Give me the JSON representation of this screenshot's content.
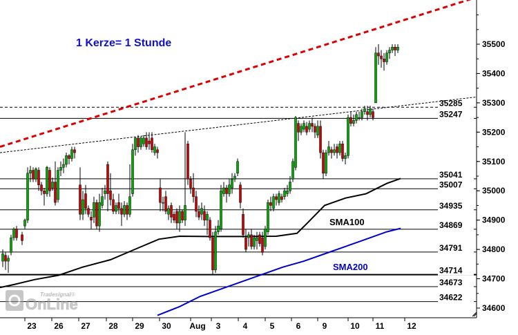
{
  "chart_data": {
    "type": "candlestick",
    "annotation": "1 Kerze= 1 Stunde",
    "brand": {
      "logo_text": "OnLine",
      "tag": "Tradesignal",
      "registered": "®"
    },
    "x_axis_labels": [
      "23",
      "26",
      "27",
      "28",
      "29",
      "30",
      "Aug",
      "3",
      "4",
      "5",
      "6",
      "9",
      "10",
      "11",
      "12"
    ],
    "y_axis": {
      "ticks": [
        34600,
        34700,
        34800,
        34900,
        35000,
        35100,
        35200,
        35300,
        35400,
        35500
      ],
      "ylim": [
        34570,
        35680
      ]
    },
    "levels": [
      35285,
      35247,
      35041,
      35007,
      34935,
      34869,
      34791,
      34714,
      34673,
      34622
    ],
    "sma100": {
      "label": "SMA100",
      "color": "#000000",
      "points": [
        [
          0,
          34670
        ],
        [
          20,
          34680
        ],
        [
          50,
          34697
        ],
        [
          85,
          34712
        ],
        [
          120,
          34740
        ],
        [
          160,
          34765
        ],
        [
          200,
          34805
        ],
        [
          230,
          34835
        ],
        [
          260,
          34845
        ],
        [
          300,
          34844
        ],
        [
          350,
          34844
        ],
        [
          400,
          34845
        ],
        [
          430,
          34855
        ],
        [
          445,
          34890
        ],
        [
          470,
          34950
        ],
        [
          500,
          34975
        ],
        [
          530,
          34990
        ],
        [
          560,
          35025
        ],
        [
          580,
          35042
        ]
      ]
    },
    "sma200": {
      "label": "SMA200",
      "color": "#0000cc",
      "points": [
        [
          228,
          34575
        ],
        [
          260,
          34605
        ],
        [
          290,
          34640
        ],
        [
          320,
          34665
        ],
        [
          350,
          34690
        ],
        [
          380,
          34715
        ],
        [
          410,
          34740
        ],
        [
          440,
          34760
        ],
        [
          470,
          34785
        ],
        [
          500,
          34810
        ],
        [
          530,
          34835
        ],
        [
          560,
          34860
        ],
        [
          580,
          34872
        ]
      ]
    },
    "trend_channel": {
      "color": "#dd0000",
      "from": [
        0,
        35150
      ],
      "to": [
        690,
        35660
      ]
    },
    "upper_thin_trend": {
      "color": "#000000",
      "from": [
        0,
        35130
      ],
      "to": [
        690,
        35320
      ]
    },
    "candles_note": "hourly candles, values in index points",
    "candles": [
      [
        4,
        34760,
        34785,
        34740,
        34800
      ],
      [
        8,
        34780,
        34760,
        34730,
        34790
      ],
      [
        12,
        34760,
        34770,
        34720,
        34780
      ],
      [
        16,
        34790,
        34840,
        34780,
        34850
      ],
      [
        20,
        34840,
        34870,
        34830,
        34875
      ],
      [
        24,
        34870,
        34840,
        34830,
        34880
      ],
      [
        32,
        34850,
        34830,
        34815,
        34860
      ],
      [
        36,
        34880,
        34900,
        34870,
        34905
      ],
      [
        40,
        34900,
        35060,
        34890,
        35080
      ],
      [
        44,
        35060,
        35070,
        35030,
        35085
      ],
      [
        48,
        35070,
        35040,
        35030,
        35080
      ],
      [
        52,
        35040,
        35075,
        35030,
        35080
      ],
      [
        56,
        35070,
        35020,
        35000,
        35080
      ],
      [
        60,
        35020,
        35000,
        34985,
        35030
      ],
      [
        64,
        35000,
        34990,
        34950,
        35010
      ],
      [
        68,
        34990,
        35080,
        34980,
        35085
      ],
      [
        72,
        35070,
        35000,
        34980,
        35080
      ],
      [
        76,
        35010,
        35030,
        35000,
        35045
      ],
      [
        80,
        35030,
        34960,
        34950,
        35100
      ],
      [
        84,
        34970,
        35070,
        34960,
        35080
      ],
      [
        88,
        35070,
        35080,
        35050,
        35100
      ],
      [
        92,
        35080,
        35090,
        35060,
        35110
      ],
      [
        96,
        35090,
        35120,
        35080,
        35130
      ],
      [
        100,
        35120,
        35110,
        35090,
        35125
      ],
      [
        104,
        35110,
        35140,
        35100,
        35150
      ],
      [
        108,
        35140,
        35130,
        35110,
        35150
      ],
      [
        116,
        35020,
        34920,
        34900,
        35080
      ],
      [
        120,
        34920,
        34970,
        34900,
        35000
      ],
      [
        124,
        34990,
        34940,
        34920,
        35020
      ],
      [
        128,
        34940,
        34920,
        34910,
        34950
      ],
      [
        132,
        34910,
        34900,
        34870,
        34930
      ],
      [
        136,
        34910,
        34960,
        34890,
        34980
      ],
      [
        140,
        34960,
        34880,
        34870,
        34970
      ],
      [
        144,
        34880,
        34960,
        34860,
        34990
      ],
      [
        148,
        34950,
        34980,
        34940,
        35010
      ],
      [
        152,
        34990,
        35000,
        34970,
        35020
      ],
      [
        156,
        35090,
        34990,
        34930,
        35100
      ],
      [
        160,
        35000,
        34970,
        34950,
        35060
      ],
      [
        164,
        34970,
        34930,
        34920,
        34990
      ],
      [
        168,
        34930,
        34950,
        34920,
        34960
      ],
      [
        172,
        34960,
        34940,
        34920,
        34990
      ],
      [
        176,
        34940,
        34920,
        34880,
        34960
      ],
      [
        180,
        34920,
        34950,
        34910,
        34965
      ],
      [
        184,
        34950,
        34920,
        34900,
        34960
      ],
      [
        188,
        34920,
        34980,
        34910,
        35090
      ],
      [
        192,
        34990,
        35140,
        34980,
        35160
      ],
      [
        196,
        35140,
        35180,
        35120,
        35185
      ],
      [
        200,
        35180,
        35150,
        35130,
        35190
      ],
      [
        204,
        35150,
        35180,
        35140,
        35185
      ],
      [
        208,
        35160,
        35180,
        35150,
        35190
      ],
      [
        212,
        35180,
        35150,
        35140,
        35200
      ],
      [
        216,
        35170,
        35160,
        35140,
        35200
      ],
      [
        220,
        35180,
        35140,
        35130,
        35200
      ],
      [
        224,
        35130,
        35150,
        35120,
        35160
      ],
      [
        228,
        35140,
        35130,
        35110,
        35150
      ],
      [
        232,
        35010,
        34960,
        34930,
        35040
      ],
      [
        236,
        34960,
        34960,
        34930,
        34980
      ],
      [
        240,
        34980,
        34930,
        34920,
        35000
      ],
      [
        244,
        34920,
        34940,
        34900,
        34950
      ],
      [
        248,
        34950,
        34910,
        34890,
        34960
      ],
      [
        252,
        34920,
        34900,
        34890,
        34930
      ],
      [
        256,
        34930,
        34890,
        34870,
        34940
      ],
      [
        260,
        34890,
        34930,
        34860,
        34950
      ],
      [
        264,
        34930,
        34900,
        34890,
        34935
      ],
      [
        268,
        34900,
        34950,
        34880,
        35200
      ],
      [
        272,
        35160,
        35040,
        35020,
        35170
      ],
      [
        276,
        35040,
        35010,
        34990,
        35050
      ],
      [
        280,
        35010,
        34980,
        34960,
        35060
      ],
      [
        284,
        34980,
        34930,
        34910,
        35000
      ],
      [
        288,
        34930,
        34910,
        34900,
        34950
      ],
      [
        292,
        34920,
        34940,
        34900,
        34960
      ],
      [
        296,
        34930,
        34900,
        34880,
        34950
      ],
      [
        300,
        34900,
        34920,
        34850,
        34930
      ],
      [
        304,
        34900,
        34840,
        34830,
        34910
      ],
      [
        308,
        34840,
        34730,
        34715,
        34860
      ],
      [
        312,
        34730,
        34860,
        34720,
        34880
      ],
      [
        316,
        34860,
        34880,
        34850,
        34900
      ],
      [
        320,
        34870,
        35000,
        34860,
        35020
      ],
      [
        324,
        34990,
        35010,
        34980,
        35030
      ],
      [
        328,
        35010,
        34990,
        34960,
        35020
      ],
      [
        332,
        34990,
        35020,
        34980,
        35040
      ],
      [
        336,
        35010,
        35040,
        34990,
        35060
      ],
      [
        340,
        35040,
        35050,
        35030,
        35060
      ],
      [
        344,
        35060,
        35100,
        35050,
        35110
      ],
      [
        348,
        35020,
        34960,
        34940,
        35030
      ],
      [
        352,
        34920,
        34850,
        34840,
        34940
      ],
      [
        356,
        34840,
        34800,
        34790,
        34870
      ],
      [
        360,
        34840,
        34850,
        34810,
        34860
      ],
      [
        364,
        34850,
        34810,
        34800,
        34870
      ],
      [
        368,
        34810,
        34840,
        34800,
        34850
      ],
      [
        372,
        34830,
        34840,
        34800,
        34860
      ],
      [
        376,
        34850,
        34820,
        34810,
        34860
      ],
      [
        380,
        34840,
        34790,
        34780,
        34860
      ],
      [
        384,
        34810,
        34870,
        34800,
        34880
      ],
      [
        388,
        34860,
        34960,
        34850,
        34970
      ],
      [
        392,
        34960,
        34950,
        34930,
        34980
      ],
      [
        396,
        34940,
        34980,
        34930,
        34990
      ],
      [
        400,
        34980,
        34970,
        34950,
        34990
      ],
      [
        404,
        34960,
        34990,
        34950,
        35000
      ],
      [
        408,
        34980,
        34970,
        34960,
        34990
      ],
      [
        412,
        34980,
        35000,
        34970,
        35010
      ],
      [
        416,
        34990,
        35000,
        34980,
        35020
      ],
      [
        420,
        35000,
        35030,
        34990,
        35050
      ],
      [
        424,
        35040,
        35100,
        35030,
        35110
      ],
      [
        428,
        35080,
        35250,
        35070,
        35255
      ],
      [
        432,
        35230,
        35200,
        35170,
        35240
      ],
      [
        436,
        35200,
        35220,
        35190,
        35230
      ],
      [
        440,
        35210,
        35230,
        35200,
        35240
      ],
      [
        444,
        35220,
        35200,
        35190,
        35235
      ],
      [
        448,
        35210,
        35230,
        35200,
        35240
      ],
      [
        452,
        35230,
        35220,
        35200,
        35250
      ],
      [
        456,
        35220,
        35200,
        35180,
        35230
      ],
      [
        460,
        35190,
        35220,
        35180,
        35240
      ],
      [
        464,
        35220,
        35130,
        35110,
        35240
      ],
      [
        468,
        35130,
        35060,
        35040,
        35140
      ],
      [
        472,
        35060,
        35130,
        35050,
        35140
      ],
      [
        476,
        35130,
        35150,
        35120,
        35170
      ],
      [
        480,
        35140,
        35130,
        35110,
        35150
      ],
      [
        484,
        35130,
        35140,
        35120,
        35160
      ],
      [
        488,
        35150,
        35130,
        35110,
        35160
      ],
      [
        492,
        35130,
        35160,
        35120,
        35170
      ],
      [
        496,
        35160,
        35110,
        35100,
        35170
      ],
      [
        500,
        35110,
        35120,
        35090,
        35130
      ],
      [
        504,
        35120,
        35250,
        35110,
        35260
      ],
      [
        508,
        35250,
        35230,
        35220,
        35270
      ],
      [
        512,
        35230,
        35240,
        35220,
        35260
      ],
      [
        516,
        35240,
        35260,
        35230,
        35270
      ],
      [
        520,
        35250,
        35250,
        35240,
        35270
      ],
      [
        524,
        35250,
        35270,
        35240,
        35280
      ],
      [
        528,
        35270,
        35280,
        35260,
        35290
      ],
      [
        532,
        35270,
        35260,
        35240,
        35290
      ],
      [
        536,
        35260,
        35280,
        35250,
        35290
      ],
      [
        540,
        35270,
        35250,
        35240,
        35280
      ],
      [
        544,
        35300,
        35470,
        35300,
        35490
      ],
      [
        548,
        35470,
        35460,
        35430,
        35500
      ],
      [
        552,
        35460,
        35450,
        35420,
        35480
      ],
      [
        556,
        35450,
        35440,
        35410,
        35470
      ],
      [
        560,
        35440,
        35470,
        35430,
        35480
      ],
      [
        564,
        35470,
        35480,
        35450,
        35490
      ],
      [
        568,
        35480,
        35490,
        35470,
        35500
      ],
      [
        572,
        35490,
        35480,
        35460,
        35500
      ],
      [
        576,
        35480,
        35490,
        35470,
        35500
      ]
    ]
  }
}
